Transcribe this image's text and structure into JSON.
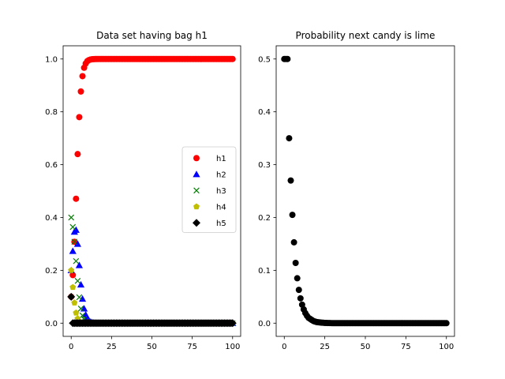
{
  "chart_data": [
    {
      "type": "scatter",
      "title": "Data set having bag h1",
      "xlabel": "",
      "ylabel": "",
      "xlim": [
        -5,
        105
      ],
      "ylim": [
        -0.05,
        1.05
      ],
      "xticks": [
        0,
        25,
        50,
        75,
        100
      ],
      "yticks": [
        0.0,
        0.2,
        0.4,
        0.6,
        0.8,
        1.0
      ],
      "ytick_labels": [
        "0.0",
        "0.2",
        "0.4",
        "0.6",
        "0.8",
        "1.0"
      ],
      "grid": false,
      "legend_position": "center-right",
      "x": "0..100 step 1",
      "series": [
        {
          "name": "h1",
          "marker": "circle",
          "color": "#ff0000",
          "values": [
            0.1,
            0.182,
            0.308,
            0.471,
            0.64,
            0.78,
            0.877,
            0.935,
            0.967,
            0.983,
            0.992,
            0.996,
            0.998,
            0.999,
            0.9995,
            0.9998,
            0.9999,
            1.0,
            1.0,
            1.0,
            1.0,
            1.0,
            1.0,
            1.0,
            1.0,
            1.0,
            1.0,
            1.0,
            1.0,
            1.0,
            1.0,
            1.0,
            1.0,
            1.0,
            1.0,
            1.0,
            1.0,
            1.0,
            1.0,
            1.0,
            1.0,
            1.0,
            1.0,
            1.0,
            1.0,
            1.0,
            1.0,
            1.0,
            1.0,
            1.0,
            1.0,
            1.0,
            1.0,
            1.0,
            1.0,
            1.0,
            1.0,
            1.0,
            1.0,
            1.0,
            1.0,
            1.0,
            1.0,
            1.0,
            1.0,
            1.0,
            1.0,
            1.0,
            1.0,
            1.0,
            1.0,
            1.0,
            1.0,
            1.0,
            1.0,
            1.0,
            1.0,
            1.0,
            1.0,
            1.0,
            1.0,
            1.0,
            1.0,
            1.0,
            1.0,
            1.0,
            1.0,
            1.0,
            1.0,
            1.0,
            1.0,
            1.0,
            1.0,
            1.0,
            1.0,
            1.0,
            1.0,
            1.0,
            1.0,
            1.0,
            1.0
          ]
        },
        {
          "name": "h2",
          "marker": "triangle",
          "color": "#0000ff",
          "values": [
            0.2,
            0.273,
            0.346,
            0.353,
            0.3,
            0.219,
            0.146,
            0.092,
            0.055,
            0.032,
            0.018,
            0.01,
            0.005,
            0.003,
            0.0015,
            0.0008,
            0.0004,
            0.0002,
            0.0001,
            0,
            0,
            0,
            0,
            0,
            0,
            0,
            0,
            0,
            0,
            0,
            0,
            0,
            0,
            0,
            0,
            0,
            0,
            0,
            0,
            0,
            0,
            0,
            0,
            0,
            0,
            0,
            0,
            0,
            0,
            0,
            0,
            0,
            0,
            0,
            0,
            0,
            0,
            0,
            0,
            0,
            0,
            0,
            0,
            0,
            0,
            0,
            0,
            0,
            0,
            0,
            0,
            0,
            0,
            0,
            0,
            0,
            0,
            0,
            0,
            0,
            0,
            0,
            0,
            0,
            0,
            0,
            0,
            0,
            0,
            0,
            0,
            0,
            0,
            0,
            0,
            0,
            0,
            0,
            0,
            0,
            0
          ]
        },
        {
          "name": "h3",
          "marker": "x",
          "color": "#008000",
          "values": [
            0.4,
            0.364,
            0.308,
            0.235,
            0.16,
            0.098,
            0.055,
            0.029,
            0.015,
            0.007,
            0.004,
            0.002,
            0.001,
            0.0004,
            0.0002,
            0.0001,
            0,
            0,
            0,
            0,
            0,
            0,
            0,
            0,
            0,
            0,
            0,
            0,
            0,
            0,
            0,
            0,
            0,
            0,
            0,
            0,
            0,
            0,
            0,
            0,
            0,
            0,
            0,
            0,
            0,
            0,
            0,
            0,
            0,
            0,
            0,
            0,
            0,
            0,
            0,
            0,
            0,
            0,
            0,
            0,
            0,
            0,
            0,
            0,
            0,
            0,
            0,
            0,
            0,
            0,
            0,
            0,
            0,
            0,
            0,
            0,
            0,
            0,
            0,
            0,
            0,
            0,
            0,
            0,
            0,
            0,
            0,
            0,
            0,
            0,
            0,
            0,
            0,
            0,
            0,
            0,
            0,
            0,
            0,
            0,
            0
          ]
        },
        {
          "name": "h4",
          "marker": "pentagon",
          "color": "#bfbf00",
          "values": [
            0.2,
            0.136,
            0.077,
            0.039,
            0.017,
            0.007,
            0.003,
            0.001,
            0.0003,
            0.0001,
            0,
            0,
            0,
            0,
            0,
            0,
            0,
            0,
            0,
            0,
            0,
            0,
            0,
            0,
            0,
            0,
            0,
            0,
            0,
            0,
            0,
            0,
            0,
            0,
            0,
            0,
            0,
            0,
            0,
            0,
            0,
            0,
            0,
            0,
            0,
            0,
            0,
            0,
            0,
            0,
            0,
            0,
            0,
            0,
            0,
            0,
            0,
            0,
            0,
            0,
            0,
            0,
            0,
            0,
            0,
            0,
            0,
            0,
            0,
            0,
            0,
            0,
            0,
            0,
            0,
            0,
            0,
            0,
            0,
            0,
            0,
            0,
            0,
            0,
            0,
            0,
            0,
            0,
            0,
            0,
            0,
            0,
            0,
            0,
            0,
            0,
            0,
            0,
            0,
            0,
            0
          ]
        },
        {
          "name": "h5",
          "marker": "diamond",
          "color": "#000000",
          "values": [
            0.1,
            0,
            0,
            0,
            0,
            0,
            0,
            0,
            0,
            0,
            0,
            0,
            0,
            0,
            0,
            0,
            0,
            0,
            0,
            0,
            0,
            0,
            0,
            0,
            0,
            0,
            0,
            0,
            0,
            0,
            0,
            0,
            0,
            0,
            0,
            0,
            0,
            0,
            0,
            0,
            0,
            0,
            0,
            0,
            0,
            0,
            0,
            0,
            0,
            0,
            0,
            0,
            0,
            0,
            0,
            0,
            0,
            0,
            0,
            0,
            0,
            0,
            0,
            0,
            0,
            0,
            0,
            0,
            0,
            0,
            0,
            0,
            0,
            0,
            0,
            0,
            0,
            0,
            0,
            0,
            0,
            0,
            0,
            0,
            0,
            0,
            0,
            0,
            0,
            0,
            0,
            0,
            0,
            0,
            0,
            0,
            0,
            0,
            0,
            0,
            0
          ]
        }
      ]
    },
    {
      "type": "scatter",
      "title": "Probability next candy is lime",
      "xlabel": "",
      "ylabel": "",
      "xlim": [
        -5,
        105
      ],
      "ylim": [
        -0.025,
        0.525
      ],
      "xticks": [
        0,
        25,
        50,
        75,
        100
      ],
      "yticks": [
        0.0,
        0.1,
        0.2,
        0.3,
        0.4,
        0.5
      ],
      "ytick_labels": [
        "0.0",
        "0.1",
        "0.2",
        "0.3",
        "0.4",
        "0.5"
      ],
      "grid": false,
      "x": "0..100 step 1",
      "series": [
        {
          "marker": "circle",
          "color": "#000000",
          "values": [
            0.5,
            0.5,
            0.5,
            0.35,
            0.27,
            0.205,
            0.153,
            0.114,
            0.085,
            0.063,
            0.047,
            0.035,
            0.026,
            0.019,
            0.014,
            0.01,
            0.008,
            0.006,
            0.004,
            0.003,
            0.002,
            0.0017,
            0.0013,
            0.0009,
            0.0007,
            0.0005,
            0.0004,
            0.0003,
            0.0002,
            0.0001,
            0,
            0,
            0,
            0,
            0,
            0,
            0,
            0,
            0,
            0,
            0,
            0,
            0,
            0,
            0,
            0,
            0,
            0,
            0,
            0,
            0,
            0,
            0,
            0,
            0,
            0,
            0,
            0,
            0,
            0,
            0,
            0,
            0,
            0,
            0,
            0,
            0,
            0,
            0,
            0,
            0,
            0,
            0,
            0,
            0,
            0,
            0,
            0,
            0,
            0,
            0,
            0,
            0,
            0,
            0,
            0,
            0,
            0,
            0,
            0,
            0,
            0,
            0,
            0,
            0,
            0,
            0,
            0,
            0,
            0,
            0
          ]
        }
      ]
    }
  ]
}
